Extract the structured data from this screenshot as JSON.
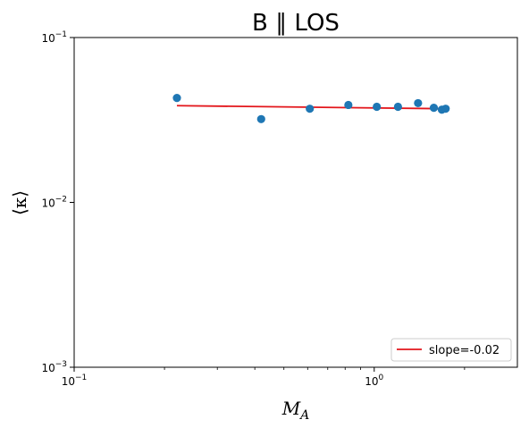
{
  "chart_data": {
    "type": "scatter",
    "title": "B ∥ LOS",
    "xlabel": "M",
    "xlabel_sub": "A",
    "ylabel": "⟨κ⟩",
    "xscale": "log",
    "yscale": "log",
    "xlim": [
      0.1,
      3.0
    ],
    "ylim": [
      0.001,
      0.1
    ],
    "x_ticks": [
      {
        "value": 0.1,
        "base": "10",
        "exp": "−1"
      },
      {
        "value": 1.0,
        "base": "10",
        "exp": "0"
      }
    ],
    "y_ticks": [
      {
        "value": 0.001,
        "base": "10",
        "exp": "−3"
      },
      {
        "value": 0.01,
        "base": "10",
        "exp": "−2"
      },
      {
        "value": 0.1,
        "base": "10",
        "exp": "−1"
      }
    ],
    "points": {
      "color": "#1f77b4",
      "x": [
        0.22,
        0.42,
        0.61,
        0.82,
        1.02,
        1.2,
        1.4,
        1.58,
        1.68,
        1.73
      ],
      "y": [
        0.043,
        0.032,
        0.037,
        0.039,
        0.038,
        0.038,
        0.04,
        0.0375,
        0.0365,
        0.037
      ]
    },
    "fit": {
      "name": "slope=-0.02",
      "color": "#e3161b",
      "x": [
        0.22,
        1.73
      ],
      "y": [
        0.0386,
        0.037
      ]
    },
    "legend_position": "lower-right",
    "grid": false
  }
}
